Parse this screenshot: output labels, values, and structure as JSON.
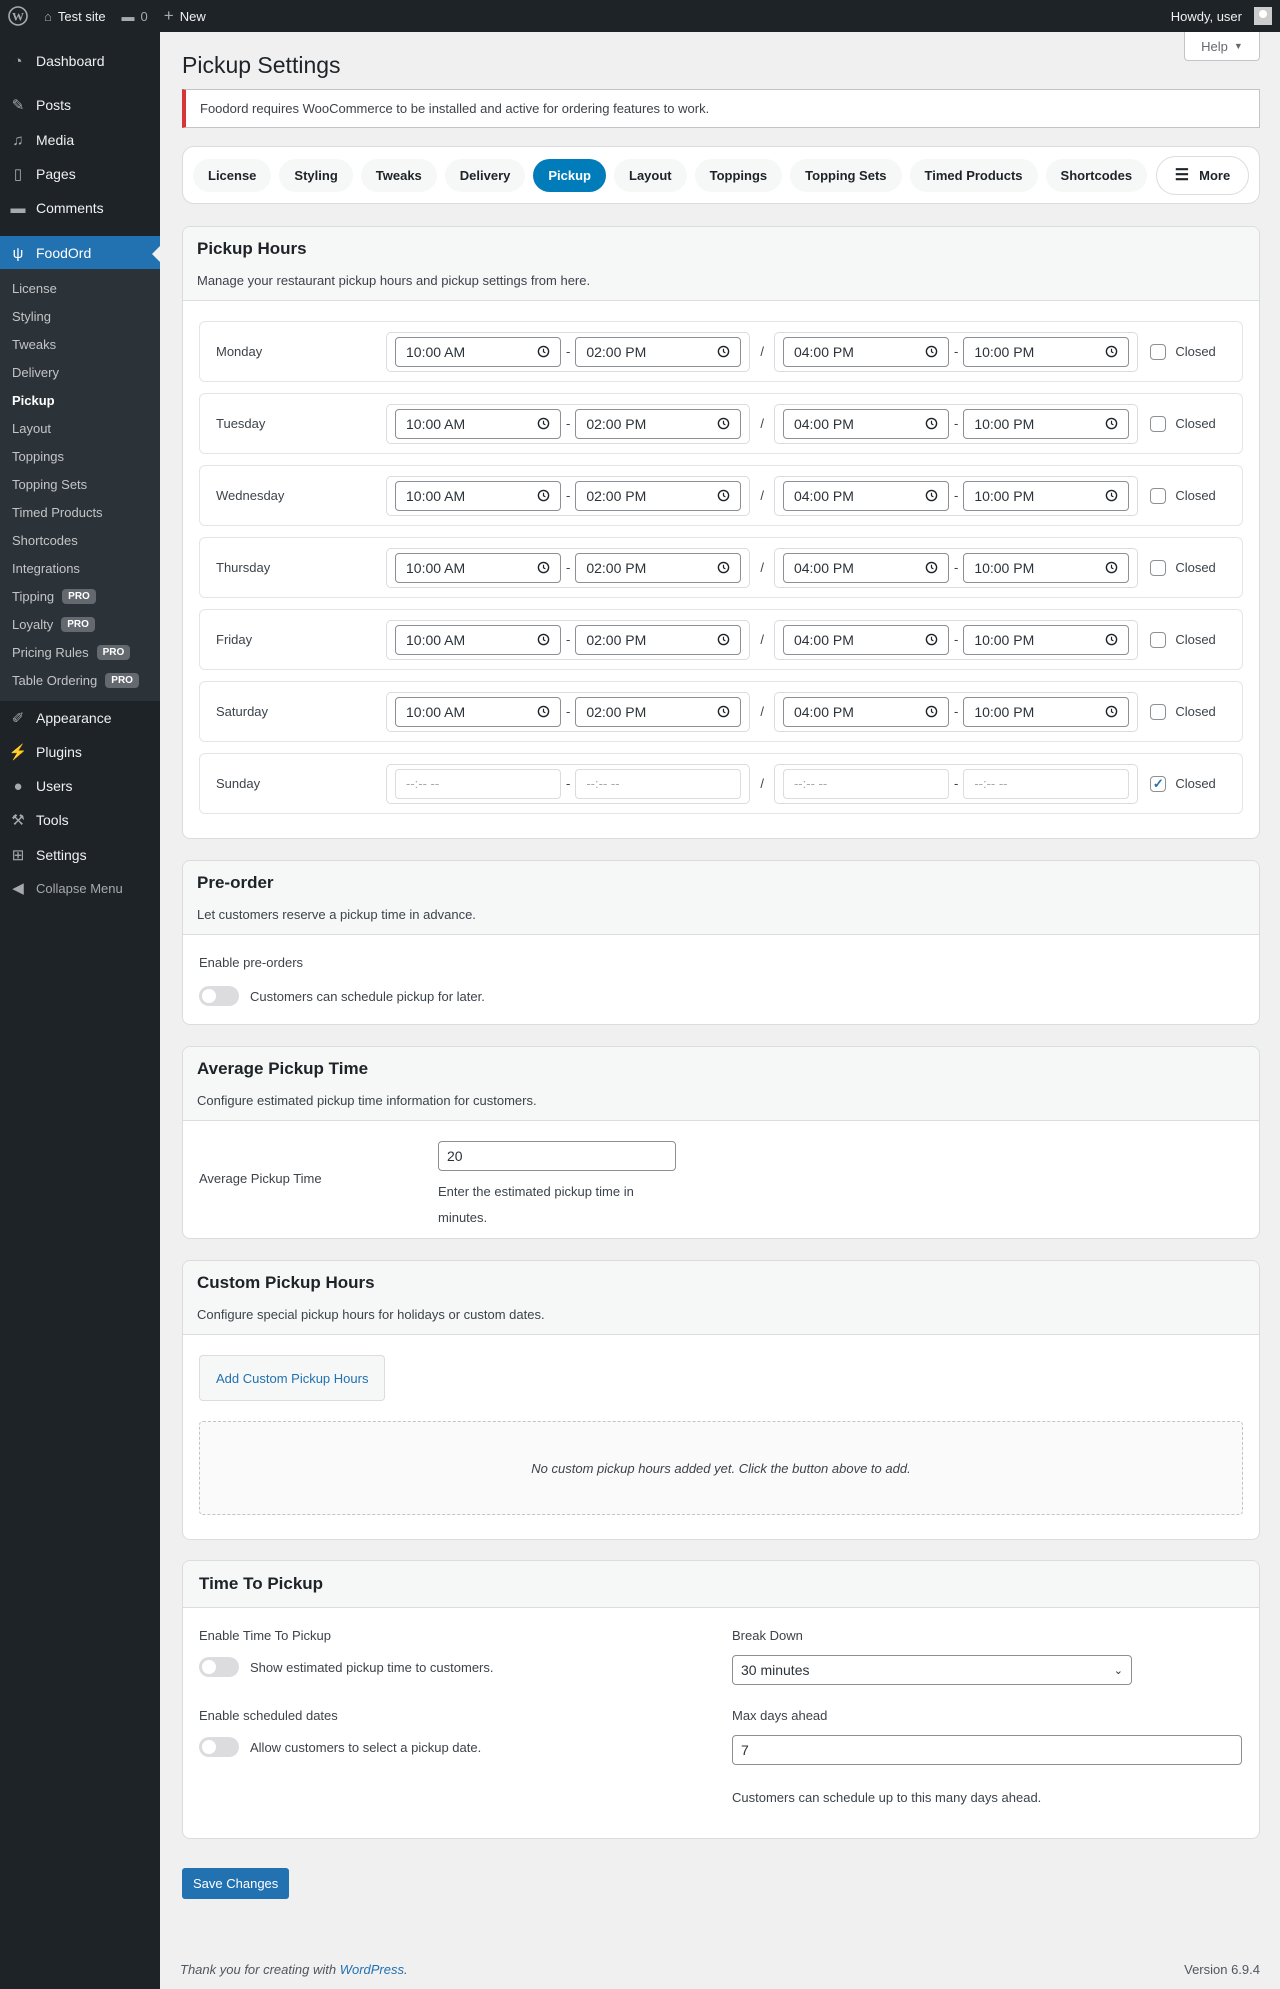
{
  "adminbar": {
    "site": "Test site",
    "comments": "0",
    "new": "New",
    "howdy": "Howdy, user"
  },
  "sidebar": {
    "items": [
      {
        "label": "Dashboard",
        "icon": "dashboard-icon"
      },
      {
        "label": "Posts",
        "icon": "pin-icon"
      },
      {
        "label": "Media",
        "icon": "media-icon"
      },
      {
        "label": "Pages",
        "icon": "pages-icon"
      },
      {
        "label": "Comments",
        "icon": "comment-icon"
      },
      {
        "label": "FoodOrd",
        "icon": "utensils-icon"
      }
    ],
    "submenu": [
      {
        "label": "License"
      },
      {
        "label": "Styling"
      },
      {
        "label": "Tweaks"
      },
      {
        "label": "Delivery"
      },
      {
        "label": "Pickup"
      },
      {
        "label": "Layout"
      },
      {
        "label": "Toppings"
      },
      {
        "label": "Topping Sets"
      },
      {
        "label": "Timed Products"
      },
      {
        "label": "Shortcodes"
      },
      {
        "label": "Integrations"
      },
      {
        "label": "Tipping",
        "badge": "PRO"
      },
      {
        "label": "Loyalty",
        "badge": "PRO"
      },
      {
        "label": "Pricing Rules",
        "badge": "PRO"
      },
      {
        "label": "Table Ordering",
        "badge": "PRO"
      }
    ],
    "bottom": [
      {
        "label": "Appearance"
      },
      {
        "label": "Plugins"
      },
      {
        "label": "Users"
      },
      {
        "label": "Tools"
      },
      {
        "label": "Settings"
      }
    ],
    "collapse": "Collapse Menu"
  },
  "page": {
    "title": "Pickup Settings",
    "help": "Help",
    "notice": "Foodord requires WooCommerce to be installed and active for ordering features to work."
  },
  "tabs": [
    "License",
    "Styling",
    "Tweaks",
    "Delivery",
    "Pickup",
    "Layout",
    "Toppings",
    "Topping Sets",
    "Timed Products",
    "Shortcodes",
    ""
  ],
  "active_tab": "Pickup",
  "more": "More",
  "hours": {
    "title": "Pickup Hours",
    "desc": "Manage your restaurant pickup hours and pickup settings from here.",
    "closed_label": "Closed",
    "empty_placeholder": "--:-- --",
    "days": [
      {
        "name": "Monday",
        "t": [
          "10:00 AM",
          "02:00 PM",
          "04:00 PM",
          "10:00 PM"
        ],
        "closed": false
      },
      {
        "name": "Tuesday",
        "t": [
          "10:00 AM",
          "02:00 PM",
          "04:00 PM",
          "10:00 PM"
        ],
        "closed": false
      },
      {
        "name": "Wednesday",
        "t": [
          "10:00 AM",
          "02:00 PM",
          "04:00 PM",
          "10:00 PM"
        ],
        "closed": false
      },
      {
        "name": "Thursday",
        "t": [
          "10:00 AM",
          "02:00 PM",
          "04:00 PM",
          "10:00 PM"
        ],
        "closed": false
      },
      {
        "name": "Friday",
        "t": [
          "10:00 AM",
          "02:00 PM",
          "04:00 PM",
          "10:00 PM"
        ],
        "closed": false
      },
      {
        "name": "Saturday",
        "t": [
          "10:00 AM",
          "02:00 PM",
          "04:00 PM",
          "10:00 PM"
        ],
        "closed": false
      },
      {
        "name": "Sunday",
        "t": [
          "",
          "",
          "",
          ""
        ],
        "closed": true
      }
    ]
  },
  "preorder": {
    "title": "Pre-order",
    "desc": "Let customers reserve a pickup time in advance.",
    "label": "Enable pre-orders",
    "toggle_text": "Customers can schedule pickup for later.",
    "enabled": false
  },
  "avg": {
    "title": "Average Pickup Time",
    "desc": "Configure estimated pickup time information for customers.",
    "label": "Average Pickup Time",
    "value": "20",
    "help": "Enter the estimated pickup time in minutes."
  },
  "custom": {
    "title": "Custom Pickup Hours",
    "desc": "Configure special pickup hours for holidays or custom dates.",
    "button": "Add Custom Pickup Hours",
    "empty": "No custom pickup hours added yet. Click the button above to add."
  },
  "ttp": {
    "title": "Time To Pickup",
    "enable_label": "Enable Time To Pickup",
    "enable_text": "Show estimated pickup time to customers.",
    "sched_label": "Enable scheduled dates",
    "sched_text": "Allow customers to select a pickup date.",
    "breakdown_label": "Break Down",
    "breakdown_value": "30 minutes",
    "max_label": "Max days ahead",
    "max_value": "7",
    "max_help": "Customers can schedule up to this many days ahead."
  },
  "save": "Save Changes",
  "footer": {
    "text": "Thank you for creating with ",
    "link": "WordPress",
    "version": "Version 6.9.4"
  }
}
